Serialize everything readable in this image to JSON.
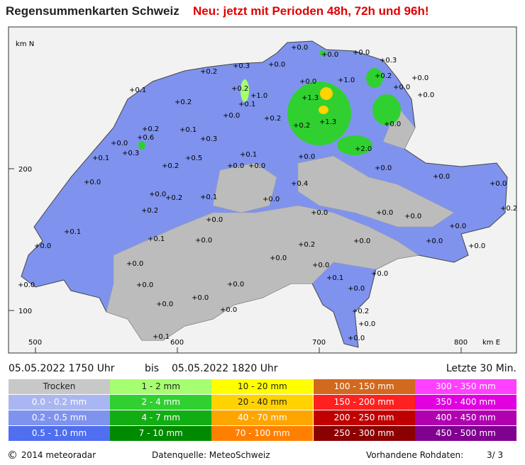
{
  "header": {
    "title": "Regensummenkarten Schweiz",
    "subtitle": "Neu: jetzt mit Perioden 48h, 72h und 96h!"
  },
  "map": {
    "y_axis_label": "km N",
    "y_ticks": [
      "200",
      "100"
    ],
    "x_ticks": [
      "500",
      "600",
      "700",
      "800"
    ],
    "x_axis_label": "km E",
    "stations": [
      "+0.0",
      "+0.0",
      "+0.0",
      "+0.3",
      "+0.0",
      "+0.3",
      "+0.2",
      "+0.2",
      "+0.0",
      "+1.0",
      "+0.0",
      "+0.2",
      "+0.1",
      "+1.0",
      "+0.0",
      "+0.0",
      "+0.2",
      "+1.3",
      "+0.1",
      "+0.0",
      "+0.2",
      "+0.2",
      "+1.3",
      "+0.2",
      "+0.1",
      "+0.0",
      "+0.3",
      "+0.0",
      "+0.6",
      "+0.3",
      "+0.5",
      "+0.2",
      "+0.1",
      "+0.0",
      "+0.0",
      "+0.1",
      "+0.0",
      "+2.0",
      "+0.0",
      "+0.0",
      "+0.4",
      "+0.0",
      "+0.2",
      "+0.1",
      "+0.0",
      "+0.0",
      "+0.0",
      "+0.2",
      "+0.1",
      "+0.0",
      "+0.0",
      "+0.0",
      "+0.0",
      "+0.0",
      "+0.2",
      "+0.0",
      "+0.1",
      "+0.0",
      "+0.2",
      "+0.0",
      "+0.0",
      "+0.0",
      "+0.0",
      "+0.0",
      "+0.0",
      "+0.0",
      "+0.0",
      "+0.0",
      "+0.0",
      "+0.1",
      "+0.0",
      "+0.0",
      "+0.0",
      "+0.2",
      "+0.0",
      "+0.0",
      "+0.0",
      "+0.1"
    ]
  },
  "period": {
    "start": "05.05.2022  1750 Uhr",
    "separator": "bis",
    "end": "05.05.2022  1820 Uhr",
    "window": "Letzte 30 Min."
  },
  "legend": {
    "columns": [
      [
        {
          "label": "Trocken",
          "color": "#c8c8c8"
        },
        {
          "label": "0.0 - 0.2 mm",
          "color": "#a9b6f2"
        },
        {
          "label": "0.2 - 0.5 mm",
          "color": "#7f93ee"
        },
        {
          "label": "0.5 - 1.0 mm",
          "color": "#4f6ef0"
        }
      ],
      [
        {
          "label": "1 - 2 mm",
          "color": "#a6ff70"
        },
        {
          "label": "2 - 4 mm",
          "color": "#2fd02f"
        },
        {
          "label": "4 - 7 mm",
          "color": "#12ad12"
        },
        {
          "label": "7 - 10 mm",
          "color": "#008a00"
        }
      ],
      [
        {
          "label": "10 - 20 mm",
          "color": "#ffff00"
        },
        {
          "label": "20 - 40 mm",
          "color": "#ffd200"
        },
        {
          "label": "40 - 70 mm",
          "color": "#ffa500"
        },
        {
          "label": "70 - 100 mm",
          "color": "#ff8000"
        }
      ],
      [
        {
          "label": "100 - 150 mm",
          "color": "#d2691e"
        },
        {
          "label": "150 - 200 mm",
          "color": "#ff2020"
        },
        {
          "label": "200 - 250 mm",
          "color": "#c00000"
        },
        {
          "label": "250 - 300 mm",
          "color": "#8b0000"
        }
      ],
      [
        {
          "label": "300 - 350 mm",
          "color": "#ff40ff"
        },
        {
          "label": "350 - 400 mm",
          "color": "#e000e0"
        },
        {
          "label": "400 - 450 mm",
          "color": "#b000b0"
        },
        {
          "label": "450 - 500 mm",
          "color": "#800090"
        }
      ]
    ]
  },
  "footer": {
    "symbol": "©",
    "copyright": "2014 meteoradar",
    "source": "Datenquelle: MeteoSchweiz",
    "raw_label": "Vorhandene Rohdaten:",
    "raw_value": "3/ 3"
  }
}
